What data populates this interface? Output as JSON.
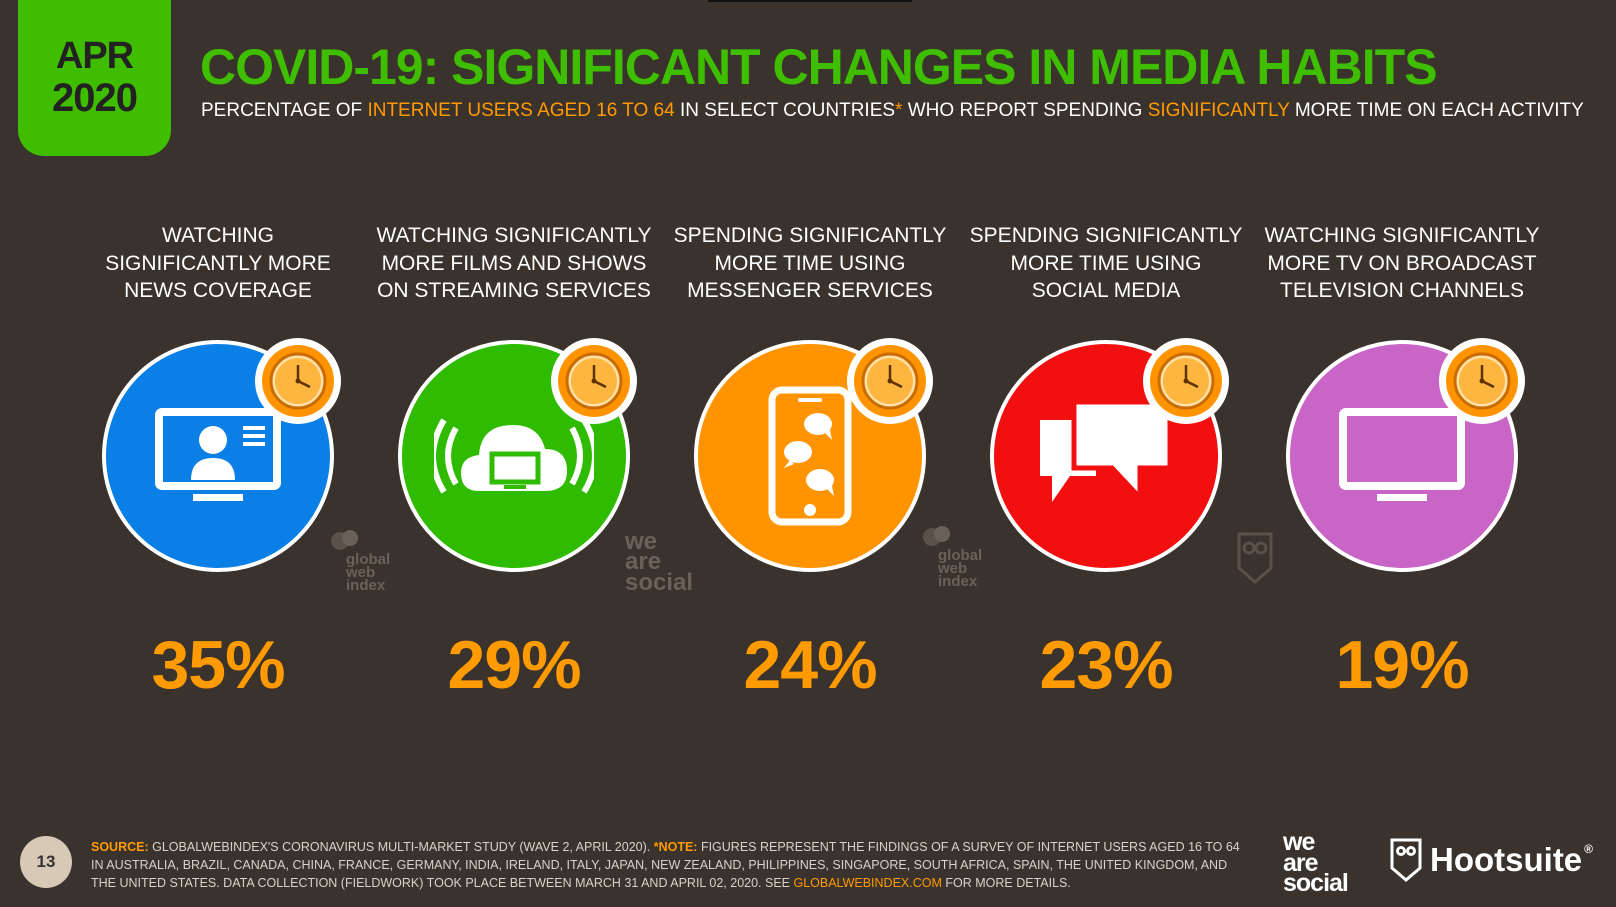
{
  "header": {
    "month": "APR",
    "year": "2020",
    "title": "COVID-19: SIGNIFICANT CHANGES IN MEDIA HABITS",
    "subtitle_parts": {
      "p1": "PERCENTAGE OF ",
      "h1": "INTERNET USERS AGED 16 TO 64",
      "p2": " IN SELECT COUNTRIES",
      "star": "*",
      "p3": " WHO REPORT SPENDING ",
      "h2": "SIGNIFICANTLY",
      "p4": " MORE TIME ON EACH ACTIVITY"
    }
  },
  "stats": [
    {
      "line1": "WATCHING",
      "line2": "SIGNIFICANTLY MORE",
      "line3": "NEWS COVERAGE",
      "value": "35%",
      "color": "#0a7fe6",
      "icon": "tv-news-icon"
    },
    {
      "line1": "WATCHING SIGNIFICANTLY",
      "line2": "MORE FILMS AND SHOWS",
      "line3": "ON STREAMING SERVICES",
      "value": "29%",
      "color": "#2fbb00",
      "icon": "cloud-streaming-icon"
    },
    {
      "line1": "SPENDING SIGNIFICANTLY",
      "line2": "MORE TIME USING",
      "line3": "MESSENGER SERVICES",
      "value": "24%",
      "color": "#ff9300",
      "icon": "phone-messenger-icon"
    },
    {
      "line1": "SPENDING SIGNIFICANTLY",
      "line2": "MORE TIME USING",
      "line3": "SOCIAL MEDIA",
      "value": "23%",
      "color": "#f20f0f",
      "icon": "chat-bubbles-icon"
    },
    {
      "line1": "WATCHING SIGNIFICANTLY",
      "line2": "MORE TV ON BROADCAST",
      "line3": "TELEVISION CHANNELS",
      "value": "19%",
      "color": "#c965c6",
      "icon": "television-icon"
    }
  ],
  "watermarks": {
    "gwi_1": "global",
    "gwi_2": "web",
    "gwi_3": "index",
    "was_1": "we",
    "was_2": "are",
    "was_3": "social"
  },
  "footer": {
    "page_number": "13",
    "source_label": "SOURCE:",
    "source_text": " GLOBALWEBINDEX'S CORONAVIRUS MULTI-MARKET STUDY (WAVE 2, APRIL 2020). ",
    "note_label": "*NOTE:",
    "note_text": " FIGURES REPRESENT THE FINDINGS OF A SURVEY OF INTERNET USERS AGED 16 TO 64 IN AUSTRALIA, BRAZIL, CANADA, CHINA, FRANCE, GERMANY, INDIA, IRELAND, ITALY, JAPAN, NEW ZEALAND, PHILIPPINES, SINGAPORE, SOUTH AFRICA, SPAIN, THE UNITED KINGDOM, AND THE UNITED STATES. DATA COLLECTION (FIELDWORK) TOOK PLACE BETWEEN MARCH 31 AND APRIL 02, 2020. SEE ",
    "link": "GLOBALWEBINDEX.COM",
    "end_text": " FOR MORE DETAILS.",
    "brand_was_1": "we",
    "brand_was_2": "are",
    "brand_was_3": "social",
    "brand_hootsuite": "Hootsuite",
    "registered": "®"
  },
  "colors": {
    "accent_green": "#3fbe00",
    "accent_orange": "#ff9a00",
    "background": "#3a322c"
  }
}
